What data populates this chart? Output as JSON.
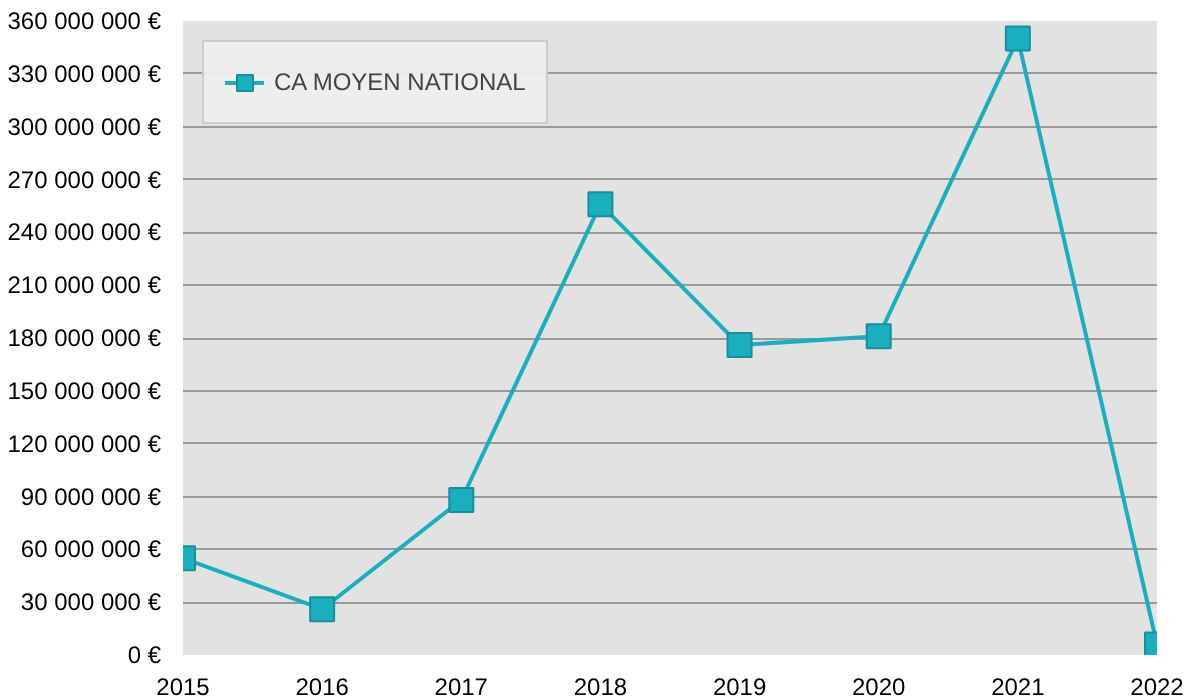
{
  "chart_data": {
    "type": "line",
    "x": [
      2015,
      2016,
      2017,
      2018,
      2019,
      2020,
      2021,
      2022
    ],
    "series": [
      {
        "name": "CA MOYEN NATIONAL",
        "color": "#1aafbf",
        "values": [
          55000000,
          26000000,
          88000000,
          256000000,
          176000000,
          181000000,
          350000000,
          6000000
        ]
      }
    ],
    "xlim": [
      2015,
      2022
    ],
    "xticks": [
      2015,
      2016,
      2017,
      2018,
      2019,
      2020,
      2021,
      2022
    ],
    "ylim": [
      0,
      360000000
    ],
    "yticks": [
      {
        "value": 0,
        "label": "0 €"
      },
      {
        "value": 30000000,
        "label": "30 000 000 €"
      },
      {
        "value": 60000000,
        "label": "60 000 000 €"
      },
      {
        "value": 90000000,
        "label": "90 000 000 €"
      },
      {
        "value": 120000000,
        "label": "120 000 000 €"
      },
      {
        "value": 150000000,
        "label": "150 000 000 €"
      },
      {
        "value": 180000000,
        "label": "180 000 000 €"
      },
      {
        "value": 210000000,
        "label": "210 000 000 €"
      },
      {
        "value": 240000000,
        "label": "240 000 000 €"
      },
      {
        "value": 270000000,
        "label": "270 000 000 €"
      },
      {
        "value": 300000000,
        "label": "300 000 000 €"
      },
      {
        "value": 330000000,
        "label": "330 000 000 €"
      },
      {
        "value": 360000000,
        "label": "360 000 000 €"
      }
    ],
    "grid": "y",
    "legend": "top left",
    "marker": "square",
    "line_style": "solid"
  }
}
